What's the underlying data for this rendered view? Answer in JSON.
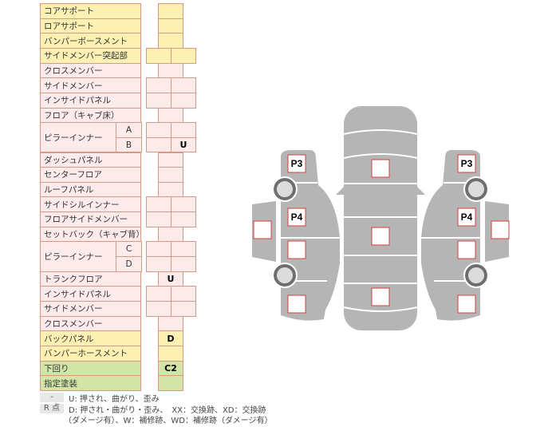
{
  "rows": [
    {
      "label": "コアサポート",
      "color": "y",
      "cols": 1,
      "value": ""
    },
    {
      "label": "ロアサポート",
      "color": "y",
      "cols": 1,
      "value": ""
    },
    {
      "label": "バンパーボースメント",
      "color": "y",
      "cols": 1,
      "value": ""
    },
    {
      "label": "サイドメンバー突起部",
      "color": "y",
      "cols": 2,
      "values": [
        "",
        ""
      ]
    },
    {
      "label": "クロスメンバー",
      "color": "p",
      "cols": 1,
      "value": ""
    },
    {
      "label": "サイドメンバー",
      "color": "p",
      "cols": 2,
      "values": [
        "",
        ""
      ]
    },
    {
      "label": "インサイドパネル",
      "color": "p",
      "cols": 2,
      "values": [
        "",
        ""
      ]
    },
    {
      "label": "フロア（キャブ床）",
      "color": "p",
      "cols": 1,
      "value": ""
    },
    {
      "label": "ピラーインナー",
      "color": "p",
      "cols": 2,
      "sub": "A",
      "span": 2,
      "values": [
        "",
        ""
      ]
    },
    {
      "label": "",
      "color": "p",
      "cols": 2,
      "sub": "B",
      "values": [
        "",
        "U"
      ]
    },
    {
      "label": "ダッシュパネル",
      "color": "p",
      "cols": 1,
      "value": ""
    },
    {
      "label": "センターフロア",
      "color": "p",
      "cols": 1,
      "value": ""
    },
    {
      "label": "ルーフパネル",
      "color": "p",
      "cols": 1,
      "value": ""
    },
    {
      "label": "サイドシルインナー",
      "color": "p",
      "cols": 2,
      "values": [
        "",
        ""
      ]
    },
    {
      "label": "フロアサイドメンバー",
      "color": "p",
      "cols": 2,
      "values": [
        "",
        ""
      ]
    },
    {
      "label": "セットバック（キャブ背）",
      "color": "p",
      "cols": 1,
      "value": ""
    },
    {
      "label": "ピラーインナー",
      "color": "p",
      "cols": 2,
      "sub": "C",
      "span": 2,
      "values": [
        "",
        ""
      ]
    },
    {
      "label": "",
      "color": "p",
      "cols": 2,
      "sub": "D",
      "values": [
        "",
        ""
      ]
    },
    {
      "label": "トランクフロア",
      "color": "p",
      "cols": 1,
      "value": "U"
    },
    {
      "label": "インサイドパネル",
      "color": "p",
      "cols": 2,
      "values": [
        "",
        ""
      ]
    },
    {
      "label": "サイドメンバー",
      "color": "p",
      "cols": 2,
      "values": [
        "",
        ""
      ]
    },
    {
      "label": "クロスメンバー",
      "color": "p",
      "cols": 1,
      "value": ""
    },
    {
      "label": "バックパネル",
      "color": "y",
      "cols": 1,
      "value": "D"
    },
    {
      "label": "バンパーホースメント",
      "color": "y",
      "cols": 1,
      "value": ""
    },
    {
      "label": "下回り",
      "color": "g",
      "cols": 1,
      "value": "C2"
    },
    {
      "label": "指定塗装",
      "color": "g",
      "cols": 1,
      "value": ""
    }
  ],
  "diagram": {
    "left": {
      "p3": "P3",
      "p4": "P4"
    },
    "right": {
      "p3": "P3",
      "p4": "P4"
    },
    "body_color": "#b5b5b5",
    "box_border": "#d04040"
  },
  "legend": [
    {
      "key": "-",
      "text": "U: 押され、曲がり、歪み"
    },
    {
      "key": "R 点",
      "text": "D: 押され・曲がり・歪み、　XX：交換跡、XD：交換跡",
      "text2": "（ダメージ有）、W：補修跡、WD：補修跡（ダメージ有）"
    }
  ]
}
